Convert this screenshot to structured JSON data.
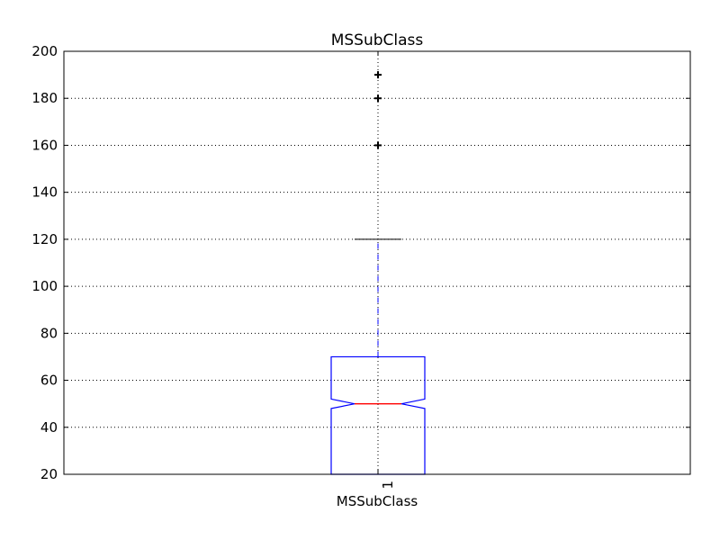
{
  "chart_data": {
    "type": "box",
    "title": "MSSubClass",
    "xlabel": "MSSubClass",
    "ylabel": "",
    "categories": [
      "1"
    ],
    "ylim": [
      20,
      200
    ],
    "yticks": [
      20,
      40,
      60,
      80,
      100,
      120,
      140,
      160,
      180,
      200
    ],
    "grid": true,
    "notched": true,
    "boxes": [
      {
        "category": "1",
        "whisker_low": 20,
        "q1": 20,
        "median": 50,
        "q3": 70,
        "whisker_high": 120,
        "notch_low": 48,
        "notch_high": 52,
        "outliers": [
          160,
          180,
          190
        ]
      }
    ],
    "colors": {
      "box": "#0000ff",
      "median": "#ff0000",
      "whisker": "#0000ff",
      "cap": "#000000",
      "flier": "#000000",
      "grid": "#000000"
    }
  }
}
